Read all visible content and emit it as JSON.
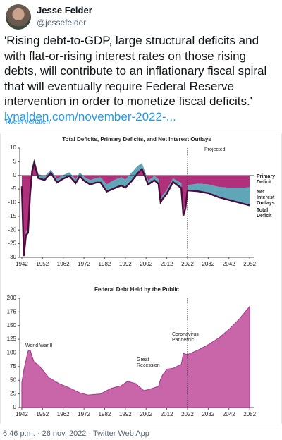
{
  "tweet": {
    "name": "Jesse Felder",
    "handle": "@jessefelder",
    "text": "'Rising debt-to-GDP, large structural deficits and with flat-or-rising interest rates on those rising debts, will contribute to an inflationary fiscal spiral that will eventually require Federal Reserve intervention in order to monetize fiscal deficits.'",
    "link": "lynalden.com/november-2022-...",
    "translate": "Tweet vertalen",
    "footer": "6:46 p.m. · 26 nov. 2022 · Twitter Web App"
  },
  "chart_data": [
    {
      "type": "area",
      "title": "Total Deficits, Primary Deficits, and Net Interest Outlays",
      "annotations": [
        "Projected"
      ],
      "projected_from": 2022,
      "x": [
        1942,
        1943,
        1944,
        1945,
        1946,
        1947,
        1948,
        1950,
        1953,
        1956,
        1959,
        1962,
        1965,
        1968,
        1970,
        1972,
        1975,
        1978,
        1980,
        1983,
        1986,
        1990,
        1992,
        1995,
        1998,
        2000,
        2003,
        2006,
        2008,
        2009,
        2010,
        2012,
        2015,
        2019,
        2020,
        2021,
        2022,
        2027,
        2032,
        2037,
        2042,
        2047,
        2052
      ],
      "series": [
        {
          "name": "Primary Deficit",
          "style": "area",
          "color": "#b0307c",
          "values": [
            -3,
            -28.5,
            -20.5,
            -19.5,
            -5.4,
            3.3,
            6.1,
            0.5,
            -0.4,
            2.1,
            -1.3,
            0.1,
            1.1,
            -1.5,
            1.1,
            -0.5,
            -1.7,
            -1,
            -0.7,
            -3.3,
            -1.9,
            -0.6,
            -1.5,
            1,
            3.5,
            4.5,
            -1.9,
            -0.2,
            -1.4,
            -8.5,
            -7.3,
            -5.3,
            -1.1,
            -2.8,
            -13.1,
            -10.6,
            -3.6,
            -3,
            -3.3,
            -4.2,
            -4.5,
            -4.5,
            -4.4
          ]
        },
        {
          "name": "Net Interest Outlays",
          "style": "area",
          "color": "#5ea6b8",
          "values": [
            -1,
            -1,
            -1.5,
            -1.5,
            -1.6,
            -1.6,
            -1.6,
            -1.5,
            -1.3,
            -1.2,
            -1.3,
            -1.3,
            -1.3,
            -1.3,
            -1.4,
            -1.4,
            -1.6,
            -1.6,
            -1.9,
            -2.6,
            -3,
            -3.1,
            -3,
            -3.1,
            -2.7,
            -2.2,
            -1.4,
            -1.6,
            -1.7,
            -1.3,
            -1.3,
            -1.4,
            -1.3,
            -1.8,
            -1.6,
            -1.5,
            -1.9,
            -2.8,
            -3.2,
            -3.8,
            -4.5,
            -5.5,
            -6.6
          ]
        },
        {
          "name": "Total Deficit",
          "style": "line",
          "color": "#4b0b3d",
          "values": [
            -4,
            -29.5,
            -22,
            -21,
            -7,
            1.7,
            4.5,
            -1,
            -1.7,
            0.9,
            -2.6,
            -1.2,
            -0.2,
            -2.8,
            -0.3,
            -1.9,
            -3.3,
            -2.6,
            -2.6,
            -5.9,
            -4.9,
            -3.7,
            -4.5,
            -2.1,
            0.8,
            2.3,
            -3.3,
            -1.8,
            -3.1,
            -9.8,
            -8.6,
            -6.7,
            -2.4,
            -4.6,
            -14.7,
            -12.1,
            -5.5,
            -5.8,
            -6.5,
            -8,
            -9,
            -10,
            -11
          ]
        }
      ],
      "xlim": [
        1941,
        2054
      ],
      "xticks": [
        1942,
        1952,
        1962,
        1972,
        1982,
        1992,
        2002,
        2012,
        2022,
        2032,
        2042,
        2052
      ],
      "ylim": [
        -30,
        10
      ],
      "yticks": [
        -30,
        -25,
        -20,
        -15,
        -10,
        -5,
        0,
        5,
        10
      ]
    },
    {
      "type": "area",
      "title": "Federal Debt Held by the Public",
      "annotations": [
        "World War II",
        "Great Recession",
        "Coronavirus Pandemic"
      ],
      "projected_from": 2022,
      "x": [
        1942,
        1943,
        1944,
        1945,
        1946,
        1947,
        1948,
        1950,
        1955,
        1960,
        1965,
        1970,
        1974,
        1980,
        1985,
        1990,
        1993,
        1997,
        2000,
        2001,
        2005,
        2008,
        2009,
        2010,
        2012,
        2015,
        2019,
        2020,
        2021,
        2022,
        2027,
        2032,
        2037,
        2042,
        2047,
        2052
      ],
      "series": [
        {
          "style": "area",
          "color": "#c965a9",
          "values": [
            46,
            69,
            86,
            103,
            106,
            93,
            83,
            78,
            55,
            44,
            36,
            27,
            23,
            25,
            35,
            40,
            48,
            44,
            34,
            31,
            35,
            39,
            52,
            60,
            70,
            72,
            79,
            99,
            98,
            97,
            105,
            115,
            127,
            143,
            162,
            185
          ]
        }
      ],
      "xlim": [
        1941,
        2054
      ],
      "xticks": [
        1942,
        1952,
        1962,
        1972,
        1982,
        1992,
        2002,
        2012,
        2022,
        2032,
        2042,
        2052
      ],
      "ylim": [
        0,
        200
      ],
      "yticks": [
        0,
        25,
        50,
        75,
        100,
        125,
        150,
        175,
        200
      ]
    }
  ]
}
